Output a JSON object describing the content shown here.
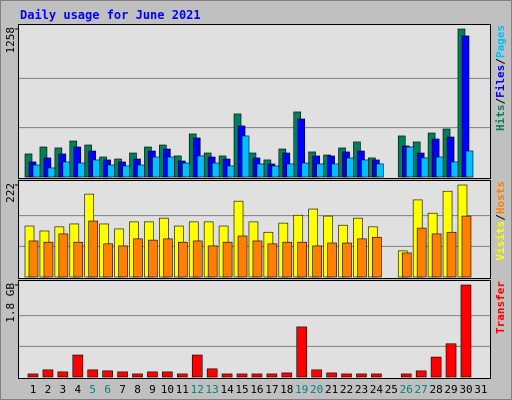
{
  "chart_data": {
    "type": "bar",
    "title": "Daily usage for June 2021",
    "categories": [
      "1",
      "2",
      "3",
      "4",
      "5",
      "6",
      "7",
      "8",
      "9",
      "10",
      "11",
      "12",
      "13",
      "14",
      "15",
      "16",
      "17",
      "18",
      "19",
      "20",
      "21",
      "22",
      "23",
      "24",
      "25",
      "26",
      "27",
      "28",
      "29",
      "30",
      "31"
    ],
    "category_colors": [
      "#000",
      "#000",
      "#000",
      "#000",
      "#008080",
      "#008080",
      "#000",
      "#000",
      "#000",
      "#000",
      "#000",
      "#008080",
      "#008080",
      "#000",
      "#000",
      "#000",
      "#000",
      "#000",
      "#008080",
      "#008080",
      "#000",
      "#000",
      "#000",
      "#000",
      "#000",
      "#008080",
      "#008080",
      "#000",
      "#000",
      "#000",
      "#000"
    ],
    "legend_separator": "/",
    "panels": [
      {
        "ylim": [
          0,
          1258
        ],
        "yticks": [
          1258
        ],
        "series": [
          {
            "name": "Hits",
            "color": "#00805c",
            "values": [
              196,
              255,
              247,
              306,
              272,
              170,
              153,
              204,
              255,
              272,
              179,
              366,
              204,
              179,
              536,
              204,
              145,
              238,
              553,
              213,
              187,
              247,
              298,
              162,
              0,
              349,
              298,
              374,
              408,
              1258,
              0
            ]
          },
          {
            "name": "Files",
            "color": "#0000ff",
            "values": [
              128,
              162,
              196,
              255,
              221,
              145,
              128,
              153,
              221,
              238,
              136,
              332,
              170,
              153,
              434,
              162,
              111,
              204,
              493,
              179,
              179,
              213,
              221,
              145,
              0,
              264,
              204,
              323,
              340,
              1199,
              0
            ]
          },
          {
            "name": "Pages",
            "color": "#00c0ff",
            "values": [
              102,
              77,
              128,
              119,
              145,
              102,
              94,
              102,
              170,
              170,
              119,
              179,
              119,
              94,
              349,
              111,
              94,
              111,
              119,
              111,
              111,
              162,
              145,
              111,
              0,
              255,
              162,
              170,
              128,
              221,
              0
            ]
          }
        ]
      },
      {
        "ylim": [
          0,
          222
        ],
        "yticks": [
          222
        ],
        "series": [
          {
            "name": "Visits",
            "color": "#ffff00",
            "values": [
              123,
              111,
              121,
              128,
              200,
              128,
              116,
              133,
              133,
              142,
              123,
              133,
              133,
              123,
              183,
              133,
              108,
              130,
              149,
              164,
              147,
              125,
              142,
              121,
              0,
              63,
              186,
              154,
              207,
              222,
              0
            ]
          },
          {
            "name": "Hosts",
            "color": "#ff8000",
            "values": [
              87,
              84,
              104,
              84,
              135,
              80,
              75,
              92,
              89,
              92,
              84,
              87,
              75,
              84,
              99,
              87,
              80,
              84,
              84,
              75,
              82,
              82,
              92,
              96,
              0,
              58,
              118,
              104,
              108,
              147,
              0
            ]
          }
        ]
      },
      {
        "ylim": [
          0,
          1.8
        ],
        "yticks": [
          {
            "value": 1.8,
            "label": "1.8 GB"
          }
        ],
        "series": [
          {
            "name": "Transfer",
            "color": "#ff0000",
            "values": [
              0.06,
              0.14,
              0.1,
              0.43,
              0.14,
              0.12,
              0.1,
              0.06,
              0.1,
              0.1,
              0.06,
              0.43,
              0.16,
              0.06,
              0.06,
              0.06,
              0.06,
              0.08,
              0.98,
              0.14,
              0.08,
              0.06,
              0.06,
              0.06,
              0,
              0.06,
              0.12,
              0.39,
              0.65,
              1.8,
              0
            ]
          }
        ]
      }
    ]
  }
}
